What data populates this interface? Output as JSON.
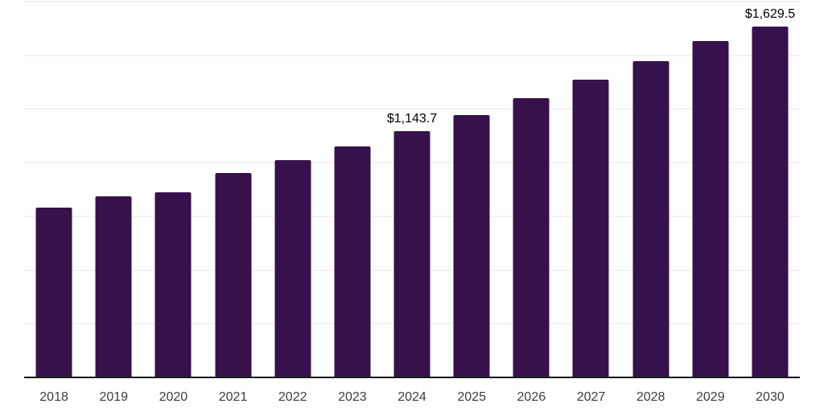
{
  "chart": {
    "background_color": "#ffffff",
    "bar_color": "#36114b",
    "axis_color": "#1a1a1a",
    "gridline_color": "#f2f2f2",
    "tick_label_color": "#3d3d3d",
    "value_label_color": "#000000"
  },
  "chart_data": {
    "type": "bar",
    "title": "",
    "xlabel": "",
    "ylabel": "",
    "categories": [
      "2018",
      "2019",
      "2020",
      "2021",
      "2022",
      "2023",
      "2024",
      "2025",
      "2026",
      "2027",
      "2028",
      "2029",
      "2030"
    ],
    "values": [
      788,
      840,
      859,
      949,
      1009,
      1072,
      1143.7,
      1218,
      1297,
      1383,
      1471,
      1563,
      1629.5
    ],
    "data_labels": {
      "2024": "$1,143.7",
      "2030": "$1,629.5"
    },
    "ylim": [
      0,
      1750
    ],
    "gridline_step": 250,
    "grid": "horizontal",
    "legend_position": "none",
    "y_axis_tick_labels_visible": false
  }
}
